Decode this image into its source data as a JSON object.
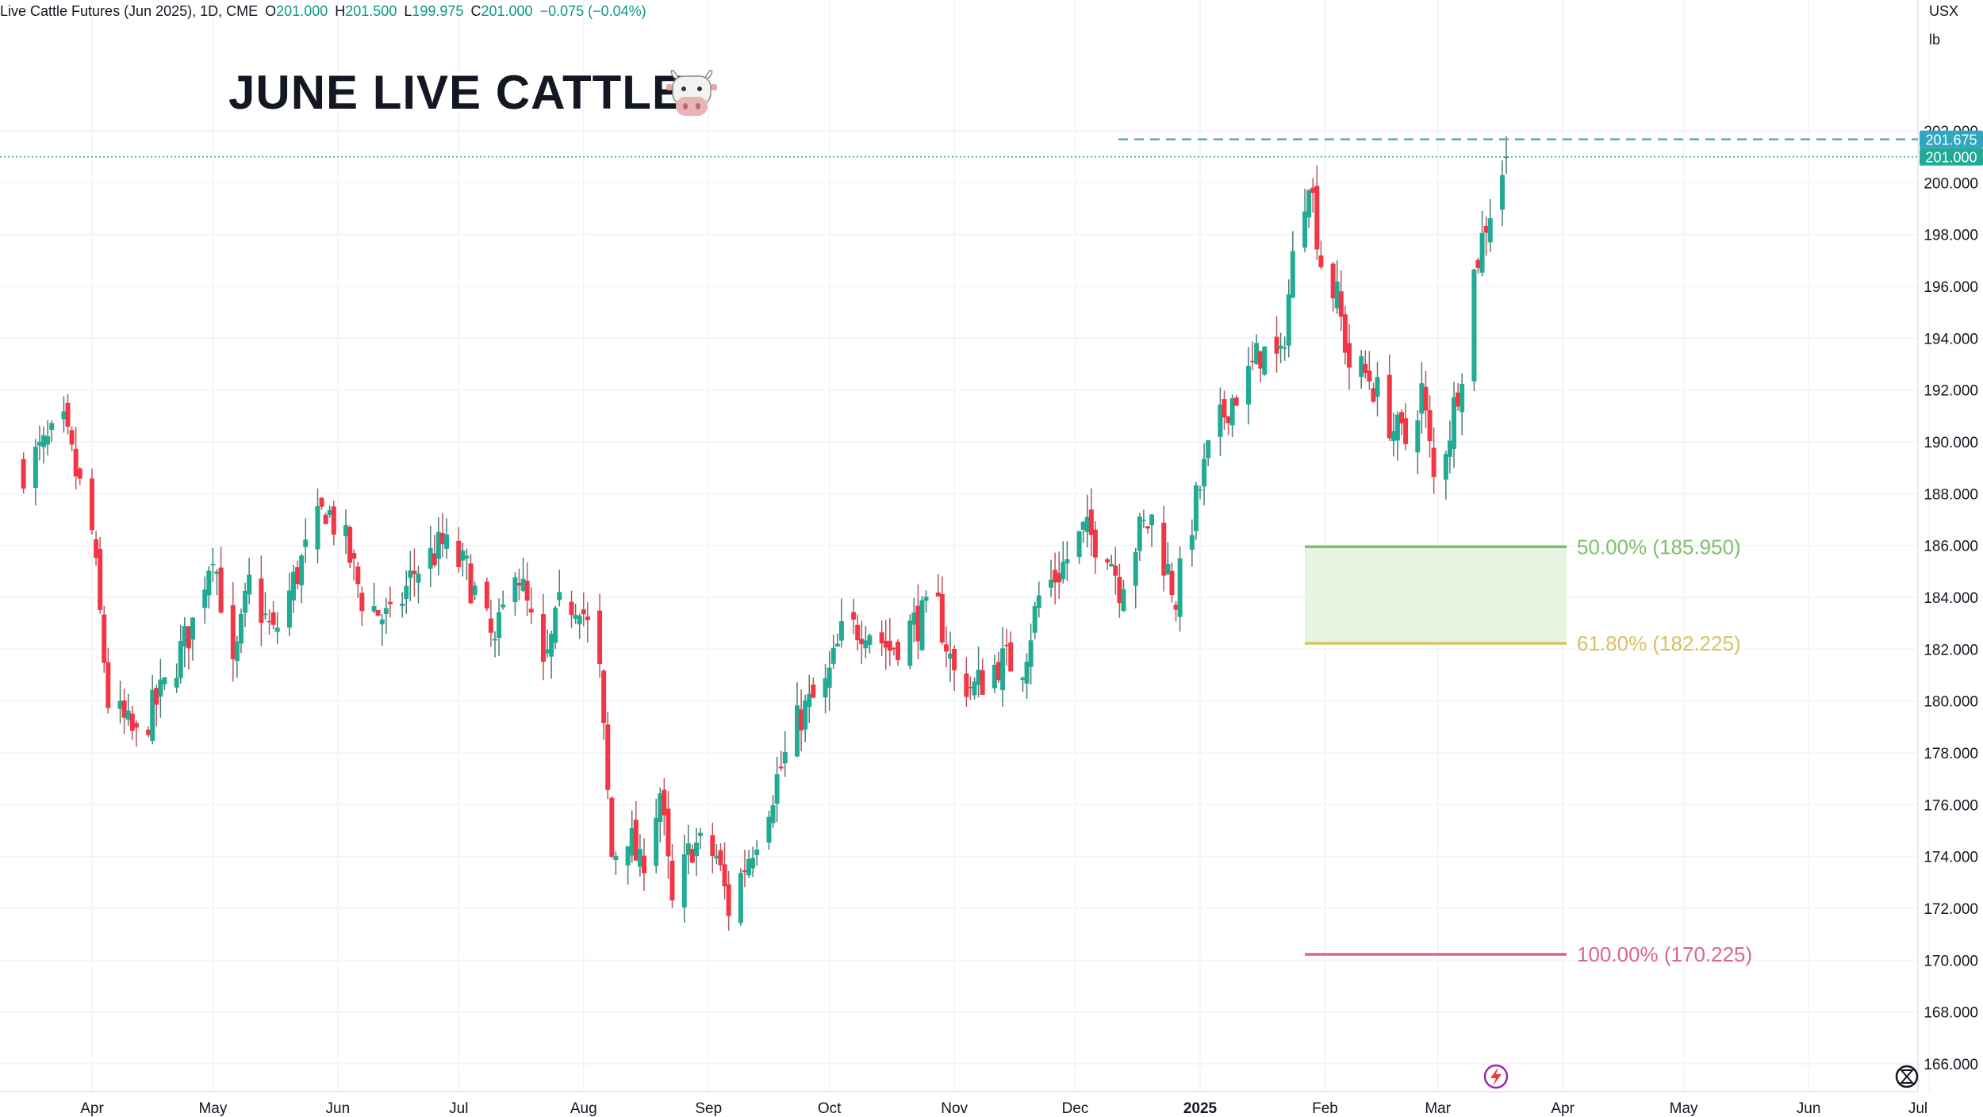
{
  "legend": {
    "symbol": "Live Cattle Futures (Jun 2025), 1D, CME",
    "open_label": "O",
    "open": "201.000",
    "high_label": "H",
    "high": "201.500",
    "low_label": "L",
    "low": "199.975",
    "close_label": "C",
    "close": "201.000",
    "change": "−0.075 (−0.04%)"
  },
  "title": "JUNE LIVE CATTLE",
  "title_icon": "cow-face-icon",
  "currency": "USX",
  "unit": "lb",
  "colors": {
    "up": "#22ab94",
    "down": "#f23645",
    "upWick": "#4a7d72",
    "downWick": "#b85660",
    "fib50": "#7dbf6b",
    "fib618": "#d7c25f",
    "fib100": "#d9668e",
    "zoneFill": "#e4f3df",
    "priceTagUp": "#22ab94",
    "priceTagCyan": "#2fa7bf"
  },
  "chart_data": {
    "type": "candlestick",
    "ylim": [
      165,
      203
    ],
    "y_ticks": [
      "166.000",
      "168.000",
      "170.000",
      "172.000",
      "174.000",
      "176.000",
      "178.000",
      "180.000",
      "182.000",
      "184.000",
      "186.000",
      "188.000",
      "190.000",
      "192.000",
      "194.000",
      "196.000",
      "198.000",
      "200.000",
      "202.000"
    ],
    "x_labels": [
      "Apr",
      "May",
      "Jun",
      "Jul",
      "Aug",
      "Sep",
      "Oct",
      "Nov",
      "Dec",
      "2025",
      "Feb",
      "Mar",
      "Apr",
      "May",
      "Jun",
      "Jul"
    ],
    "last_price": "201.000",
    "high_line_price": "201.675",
    "fib_levels": [
      {
        "label": "50.00% (185.950)",
        "value": 185.95
      },
      {
        "label": "61.80% (182.225)",
        "value": 182.225
      },
      {
        "label": "100.00% (170.225)",
        "value": 170.225
      }
    ],
    "anchors": [
      {
        "date": "2024-03-15",
        "close": 189.0
      },
      {
        "date": "2024-03-25",
        "close": 190.5
      },
      {
        "date": "2024-04-01",
        "close": 186.5
      },
      {
        "date": "2024-04-05",
        "close": 180.0
      },
      {
        "date": "2024-04-12",
        "close": 178.5
      },
      {
        "date": "2024-04-19",
        "close": 180.5
      },
      {
        "date": "2024-04-26",
        "close": 183.0
      },
      {
        "date": "2024-05-01",
        "close": 186.0
      },
      {
        "date": "2024-05-06",
        "close": 181.0
      },
      {
        "date": "2024-05-10",
        "close": 184.5
      },
      {
        "date": "2024-05-16",
        "close": 182.5
      },
      {
        "date": "2024-05-22",
        "close": 185.0
      },
      {
        "date": "2024-05-29",
        "close": 187.5
      },
      {
        "date": "2024-06-03",
        "close": 186.0
      },
      {
        "date": "2024-06-07",
        "close": 184.0
      },
      {
        "date": "2024-06-14",
        "close": 183.0
      },
      {
        "date": "2024-06-20",
        "close": 185.0
      },
      {
        "date": "2024-06-27",
        "close": 186.0
      },
      {
        "date": "2024-07-03",
        "close": 185.0
      },
      {
        "date": "2024-07-10",
        "close": 182.0
      },
      {
        "date": "2024-07-15",
        "close": 185.5
      },
      {
        "date": "2024-07-22",
        "close": 181.0
      },
      {
        "date": "2024-07-26",
        "close": 183.5
      },
      {
        "date": "2024-07-31",
        "close": 184.0
      },
      {
        "date": "2024-08-05",
        "close": 181.0
      },
      {
        "date": "2024-08-08",
        "close": 174.0
      },
      {
        "date": "2024-08-12",
        "close": 175.0
      },
      {
        "date": "2024-08-15",
        "close": 173.5
      },
      {
        "date": "2024-08-20",
        "close": 176.5
      },
      {
        "date": "2024-08-23",
        "close": 172.0
      },
      {
        "date": "2024-08-28",
        "close": 174.5
      },
      {
        "date": "2024-09-03",
        "close": 174.0
      },
      {
        "date": "2024-09-06",
        "close": 172.0
      },
      {
        "date": "2024-09-12",
        "close": 174.5
      },
      {
        "date": "2024-09-18",
        "close": 177.0
      },
      {
        "date": "2024-09-24",
        "close": 179.5
      },
      {
        "date": "2024-09-30",
        "close": 180.5
      },
      {
        "date": "2024-10-04",
        "close": 182.5
      },
      {
        "date": "2024-10-10",
        "close": 183.0
      },
      {
        "date": "2024-10-16",
        "close": 182.0
      },
      {
        "date": "2024-10-22",
        "close": 183.0
      },
      {
        "date": "2024-10-28",
        "close": 183.5
      },
      {
        "date": "2024-11-01",
        "close": 181.0
      },
      {
        "date": "2024-11-06",
        "close": 180.5
      },
      {
        "date": "2024-11-12",
        "close": 181.5
      },
      {
        "date": "2024-11-18",
        "close": 181.5
      },
      {
        "date": "2024-11-22",
        "close": 184.0
      },
      {
        "date": "2024-11-27",
        "close": 185.0
      },
      {
        "date": "2024-12-03",
        "close": 186.5
      },
      {
        "date": "2024-12-09",
        "close": 186.0
      },
      {
        "date": "2024-12-12",
        "close": 184.5
      },
      {
        "date": "2024-12-17",
        "close": 186.5
      },
      {
        "date": "2024-12-20",
        "close": 187.0
      },
      {
        "date": "2024-12-23",
        "close": 185.5
      },
      {
        "date": "2024-12-26",
        "close": 184.0
      },
      {
        "date": "2024-12-30",
        "close": 187.0
      },
      {
        "date": "2025-01-03",
        "close": 189.5
      },
      {
        "date": "2025-01-08",
        "close": 191.5
      },
      {
        "date": "2025-01-13",
        "close": 192.5
      },
      {
        "date": "2025-01-16",
        "close": 193.5
      },
      {
        "date": "2025-01-21",
        "close": 193.0
      },
      {
        "date": "2025-01-24",
        "close": 197.0
      },
      {
        "date": "2025-01-28",
        "close": 200.5
      },
      {
        "date": "2025-01-31",
        "close": 197.0
      },
      {
        "date": "2025-02-04",
        "close": 195.5
      },
      {
        "date": "2025-02-07",
        "close": 193.0
      },
      {
        "date": "2025-02-12",
        "close": 192.5
      },
      {
        "date": "2025-02-18",
        "close": 190.5
      },
      {
        "date": "2025-02-21",
        "close": 190.0
      },
      {
        "date": "2025-02-25",
        "close": 192.0
      },
      {
        "date": "2025-02-28",
        "close": 188.5
      },
      {
        "date": "2025-03-04",
        "close": 190.5
      },
      {
        "date": "2025-03-07",
        "close": 193.0
      },
      {
        "date": "2025-03-10",
        "close": 196.5
      },
      {
        "date": "2025-03-13",
        "close": 198.5
      },
      {
        "date": "2025-03-18",
        "close": 201.0
      }
    ]
  }
}
